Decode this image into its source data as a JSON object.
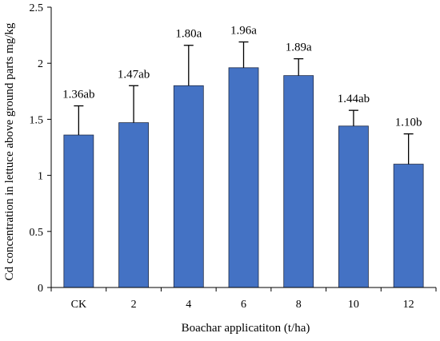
{
  "chart_data": {
    "type": "bar",
    "categories": [
      "CK",
      "2",
      "4",
      "6",
      "8",
      "10",
      "12"
    ],
    "values": [
      1.36,
      1.47,
      1.8,
      1.96,
      1.89,
      1.44,
      1.1
    ],
    "error_upper": [
      0.26,
      0.33,
      0.36,
      0.23,
      0.15,
      0.14,
      0.27
    ],
    "data_labels": [
      "1.36ab",
      "1.47ab",
      "1.80a",
      "1.96a",
      "1.89a",
      "1.44ab",
      "1.10b"
    ],
    "xlabel": "Boachar applicatiton (t/ha)",
    "ylabel": "Cd concentration in lettuce above ground parts  mg/kg",
    "ylim": [
      0,
      2.5
    ],
    "yticks": [
      "0",
      "0.5",
      "1",
      "1.5",
      "2",
      "2.5"
    ],
    "yticks_values": [
      0,
      0.5,
      1,
      1.5,
      2,
      2.5
    ],
    "grid": false,
    "legend": "none",
    "bar_color": "#4472c4",
    "bar_edge_color": "#1f2a44"
  }
}
